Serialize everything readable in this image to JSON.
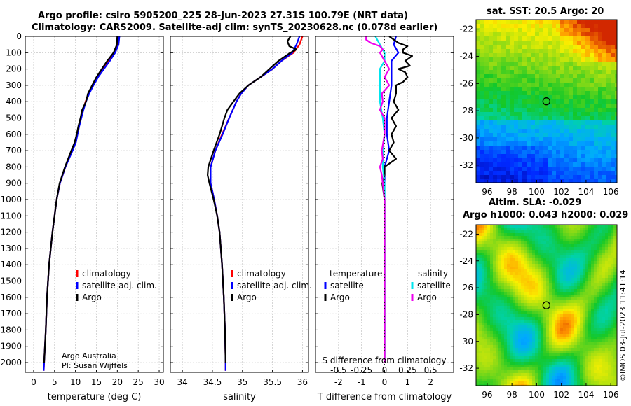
{
  "header": {
    "line1": "Argo profile: csiro 5905200_225 28-Jun-2023 27.31S 100.79E (NRT data)",
    "line2": "Climatology: CARS2009. Satellite-adj clim: synTS_20230628.nc (0.078d earlier)"
  },
  "sst_title": "sat. SST: 20.5 Argo: 20",
  "sla_title1": "Altim. SLA: -0.029",
  "sla_title2": "Argo h1000: 0.043 h2000: 0.029",
  "credit": {
    "line1": "Argo Australia",
    "line2": "PI: Susan Wijffels"
  },
  "watermark": "©IMOS 03-Jul-2023 11:41:14",
  "colors": {
    "climatology": "#ff0000",
    "satellite": "#0000ff",
    "argo": "#000000",
    "t_sat": "#0000ff",
    "t_argo": "#000000",
    "s_sat": "#00e5ee",
    "s_argo": "#ee00ee"
  },
  "chart_data": [
    {
      "type": "line",
      "title": "",
      "xlabel": "temperature (deg C)",
      "ylabel": "",
      "xlim": [
        -2,
        31
      ],
      "ylim": [
        2060,
        0
      ],
      "xticks": [
        0,
        5,
        10,
        15,
        20,
        25,
        30
      ],
      "yticks": [
        0,
        100,
        200,
        300,
        400,
        500,
        600,
        700,
        800,
        900,
        1000,
        1100,
        1200,
        1300,
        1400,
        1500,
        1600,
        1700,
        1800,
        1900,
        2000
      ],
      "legend": [
        "climatology",
        "satellite-adj. clim.",
        "Argo"
      ],
      "legend_position": "lower-right",
      "series": [
        {
          "name": "climatology",
          "depth": [
            0,
            50,
            100,
            150,
            200,
            250,
            300,
            350,
            400,
            450,
            500,
            550,
            600,
            650,
            700,
            800,
            900,
            1000,
            1200,
            1400,
            1600,
            1800,
            2000,
            2050
          ],
          "values": [
            20.2,
            20.0,
            19.3,
            18.0,
            16.6,
            15.3,
            14.2,
            13.2,
            12.4,
            11.8,
            11.3,
            10.8,
            10.4,
            10.0,
            9.2,
            7.6,
            6.3,
            5.5,
            4.5,
            3.7,
            3.2,
            2.9,
            2.5,
            2.4
          ]
        },
        {
          "name": "satellite-adj. clim.",
          "depth": [
            0,
            50,
            100,
            150,
            200,
            250,
            300,
            350,
            400,
            450,
            500,
            550,
            600,
            650,
            700,
            800,
            900,
            1000,
            1200,
            1400,
            1600,
            1800,
            2000,
            2050
          ],
          "values": [
            20.5,
            20.3,
            19.5,
            18.2,
            16.8,
            15.4,
            14.3,
            13.3,
            12.5,
            11.9,
            11.4,
            10.9,
            10.5,
            10.1,
            9.3,
            7.6,
            6.3,
            5.5,
            4.5,
            3.7,
            3.2,
            2.9,
            2.5,
            2.4
          ]
        },
        {
          "name": "Argo",
          "depth": [
            0,
            50,
            100,
            150,
            200,
            250,
            300,
            350,
            400,
            450,
            500,
            550,
            600,
            650,
            700,
            800,
            900,
            1000,
            1200,
            1400,
            1600,
            1800,
            2000
          ],
          "values": [
            20.0,
            19.9,
            19.1,
            17.6,
            16.3,
            15.0,
            14.0,
            13.0,
            12.5,
            11.6,
            11.2,
            10.7,
            10.3,
            9.8,
            9.0,
            7.5,
            6.2,
            5.5,
            4.5,
            3.7,
            3.2,
            2.9,
            2.5
          ]
        }
      ]
    },
    {
      "type": "line",
      "title": "",
      "xlabel": "salinity",
      "ylabel": "",
      "xlim": [
        33.8,
        36.1
      ],
      "ylim": [
        2060,
        0
      ],
      "xticks": [
        34,
        34.5,
        35,
        35.5,
        36
      ],
      "xticklabels": [
        "34",
        "34.5",
        "35",
        "35.5",
        "36"
      ],
      "legend": [
        "climatology",
        "satellite-adj. clim.",
        "Argo"
      ],
      "legend_position": "lower-right",
      "series": [
        {
          "name": "climatology",
          "depth": [
            0,
            50,
            100,
            150,
            200,
            250,
            300,
            350,
            400,
            500,
            600,
            700,
            800,
            900,
            1000,
            1100,
            1200,
            1400,
            1600,
            1800,
            2000,
            2050
          ],
          "values": [
            36.0,
            35.95,
            35.85,
            35.65,
            35.5,
            35.3,
            35.1,
            34.98,
            34.9,
            34.78,
            34.66,
            34.55,
            34.47,
            34.47,
            34.53,
            34.58,
            34.62,
            34.66,
            34.69,
            34.71,
            34.72,
            34.72
          ]
        },
        {
          "name": "satellite-adj. clim.",
          "depth": [
            0,
            50,
            100,
            150,
            200,
            250,
            300,
            350,
            400,
            500,
            600,
            700,
            800,
            900,
            1000,
            1100,
            1200,
            1400,
            1600,
            1800,
            2000,
            2050
          ],
          "values": [
            35.95,
            35.9,
            35.83,
            35.65,
            35.5,
            35.3,
            35.1,
            34.98,
            34.9,
            34.78,
            34.67,
            34.55,
            34.47,
            34.47,
            34.53,
            34.58,
            34.62,
            34.66,
            34.69,
            34.71,
            34.72,
            34.72
          ]
        },
        {
          "name": "Argo",
          "depth": [
            0,
            30,
            60,
            80,
            100,
            150,
            200,
            250,
            300,
            350,
            400,
            450,
            500,
            600,
            700,
            800,
            850,
            900,
            1000,
            1100,
            1200,
            1400,
            1600,
            1800,
            2000
          ],
          "values": [
            35.8,
            35.75,
            35.78,
            35.9,
            35.8,
            35.6,
            35.45,
            35.3,
            35.1,
            34.95,
            34.85,
            34.75,
            34.7,
            34.62,
            34.52,
            34.43,
            34.42,
            34.45,
            34.52,
            34.58,
            34.62,
            34.66,
            34.69,
            34.71,
            34.72
          ]
        }
      ]
    },
    {
      "type": "line",
      "title": "",
      "xlabel": "T difference from climatology",
      "x2label": "S difference from climatology",
      "xlim": [
        -3,
        3
      ],
      "ylim": [
        2060,
        0
      ],
      "xticks": [
        -2,
        -1,
        0,
        1,
        2
      ],
      "xticklabels": [
        "-2",
        "-1",
        "0",
        "1",
        "2"
      ],
      "x2ticks": [
        -0.5,
        -0.25,
        0,
        0.25,
        0.5
      ],
      "x2ticklabels": [
        "-0.5",
        "-0.25",
        "0",
        "0.25",
        "0.5"
      ],
      "x2scale": 4,
      "legend_temperature_title": "temperature",
      "legend_salinity_title": "salinity",
      "legend_temperature": [
        "satellite",
        "Argo"
      ],
      "legend_salinity": [
        "satellite",
        "Argo"
      ],
      "series": [
        {
          "name": "T satellite",
          "depth": [
            0,
            50,
            100,
            150,
            200,
            300,
            400,
            500,
            600,
            700,
            800,
            900,
            1000,
            1200,
            1500,
            2000
          ],
          "values": [
            0.5,
            0.4,
            0.6,
            0.3,
            0.3,
            0.3,
            0.2,
            0.1,
            0.1,
            0.2,
            0.0,
            0.0,
            0.0,
            0.0,
            0.0,
            0.0
          ]
        },
        {
          "name": "T Argo",
          "depth": [
            0,
            40,
            60,
            80,
            100,
            120,
            150,
            180,
            200,
            220,
            250,
            280,
            300,
            350,
            400,
            450,
            500,
            550,
            600,
            650,
            700,
            750,
            800,
            850,
            900,
            1000,
            1200,
            1500,
            2000
          ],
          "values": [
            0.2,
            0.6,
            1.0,
            0.8,
            0.8,
            1.2,
            0.9,
            1.1,
            0.6,
            0.9,
            1.0,
            0.8,
            0.5,
            0.5,
            0.4,
            0.6,
            0.3,
            0.5,
            0.3,
            0.4,
            0.2,
            0.5,
            0.0,
            0.0,
            -0.1,
            0.0,
            0.0,
            0.0,
            0.0
          ]
        },
        {
          "name": "S satellite",
          "depth": [
            0,
            50,
            100,
            150,
            200,
            300,
            400,
            500,
            600,
            700,
            800,
            900,
            1000,
            1200,
            1500,
            2000
          ],
          "values": [
            -0.1,
            -0.05,
            0.0,
            0.0,
            -0.05,
            -0.05,
            -0.05,
            -0.02,
            0.0,
            -0.02,
            -0.02,
            0.0,
            0.0,
            0.0,
            0.0,
            0.0
          ]
        },
        {
          "name": "S Argo",
          "depth": [
            0,
            20,
            40,
            60,
            80,
            100,
            150,
            200,
            250,
            300,
            350,
            400,
            450,
            500,
            600,
            700,
            750,
            800,
            850,
            900,
            1000,
            1200,
            1500,
            2000
          ],
          "values": [
            -0.2,
            -0.2,
            -0.15,
            -0.05,
            -0.02,
            -0.05,
            0.0,
            0.05,
            0.0,
            0.05,
            -0.03,
            -0.02,
            -0.05,
            0.0,
            0.0,
            -0.03,
            -0.02,
            -0.05,
            -0.03,
            -0.02,
            0.0,
            0.0,
            0.0,
            0.0
          ]
        }
      ]
    },
    {
      "type": "heatmap",
      "title": "sat. SST: 20.5 Argo: 20",
      "xticks": [
        96,
        98,
        100,
        102,
        104,
        106
      ],
      "yticks": [
        -22,
        -24,
        -26,
        -28,
        -30,
        -32
      ],
      "xlim": [
        95.1,
        106.5
      ],
      "ylim": [
        -33.3,
        -21.3
      ],
      "argo_position": {
        "lon": 100.79,
        "lat": -27.31
      }
    },
    {
      "type": "heatmap",
      "title": "Altim. SLA: -0.029",
      "xticks": [
        96,
        98,
        100,
        102,
        104,
        106
      ],
      "yticks": [
        -22,
        -24,
        -26,
        -28,
        -30,
        -32
      ],
      "xlim": [
        95.1,
        106.5
      ],
      "ylim": [
        -33.3,
        -21.3
      ],
      "argo_position": {
        "lon": 100.79,
        "lat": -27.31
      }
    }
  ]
}
